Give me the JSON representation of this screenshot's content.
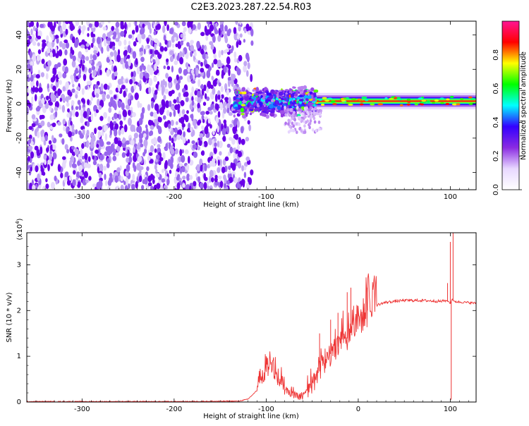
{
  "title": "C2E3.2023.287.22.54.R03",
  "chart_data": [
    {
      "type": "heatmap",
      "xlabel": "Height of straight line (km)",
      "ylabel": "Frequency (Hz)",
      "xlim": [
        -360,
        128
      ],
      "ylim": [
        -50,
        48
      ],
      "xticks": [
        -300,
        -200,
        -100,
        0,
        100
      ],
      "yticks": [
        -40,
        -20,
        0,
        20,
        40
      ],
      "colorbar": {
        "label": "Normalized spectral amplitude",
        "range": [
          0,
          1
        ],
        "ticks": [
          "0.0",
          "0.2",
          "0.4",
          "0.6",
          "0.8"
        ],
        "colors": [
          "#ffffff",
          "#e8d8ff",
          "#8a2be2",
          "#3300ff",
          "#00ffff",
          "#00ff00",
          "#ffff00",
          "#ff0000",
          "#ff1493"
        ]
      },
      "regions": [
        {
          "x_range": [
            -360,
            -120
          ],
          "f_range": [
            -50,
            48
          ],
          "amplitude": 0.05,
          "pattern": "noise"
        },
        {
          "x_range": [
            -135,
            -45
          ],
          "f_range": [
            -8,
            10
          ],
          "amplitude": 0.35,
          "pattern": "turbulent band"
        },
        {
          "x_range": [
            -45,
            128
          ],
          "f_center": 1.5,
          "f_halfwidth": 2,
          "amplitude": 0.9,
          "pattern": "narrow tone"
        }
      ]
    },
    {
      "type": "line",
      "xlabel": "Height of straight line (km)",
      "ylabel": "SNR (10 * v/v)",
      "scale_note": "(x10",
      "scale_exp": "4",
      "scale_close": ")",
      "xlim": [
        -360,
        128
      ],
      "ylim": [
        0,
        3.7
      ],
      "xticks": [
        -300,
        -200,
        -100,
        0,
        100
      ],
      "yticks": [
        0,
        1,
        2,
        3
      ],
      "color": "#ee3333",
      "series": [
        {
          "x": [
            -360,
            -200,
            -130,
            -120,
            -110,
            -100,
            -95,
            -90,
            -85,
            -80,
            -75,
            -70,
            -65,
            -60,
            -55,
            -50,
            -45,
            -40,
            -35,
            -30,
            -25,
            -20,
            -15,
            -10,
            -5,
            0,
            5,
            10,
            15,
            20,
            25,
            30,
            40,
            50,
            60,
            70,
            80,
            90,
            95,
            98,
            100,
            102,
            104,
            108,
            115,
            128
          ],
          "y": [
            0.01,
            0.01,
            0.02,
            0.06,
            0.25,
            0.7,
            0.8,
            0.6,
            0.45,
            0.3,
            0.2,
            0.15,
            0.12,
            0.13,
            0.2,
            0.35,
            0.55,
            0.75,
            0.9,
            1.05,
            1.15,
            1.25,
            1.3,
            1.45,
            1.6,
            1.75,
            1.9,
            2.0,
            2.07,
            2.12,
            2.15,
            2.18,
            2.2,
            2.22,
            2.22,
            2.22,
            2.21,
            2.2,
            2.22,
            2.2,
            2.15,
            2.25,
            2.2,
            2.19,
            2.18,
            2.16
          ]
        }
      ],
      "spikes": [
        {
          "x": -100,
          "y": 1.0
        },
        {
          "x": -42,
          "y": 1.5
        },
        {
          "x": -30,
          "y": 1.8
        },
        {
          "x": -22,
          "y": 1.95
        },
        {
          "x": -12,
          "y": 2.4
        },
        {
          "x": -8,
          "y": 2.5
        },
        {
          "x": 10,
          "y": 2.5
        },
        {
          "x": 97,
          "y": 2.6
        },
        {
          "x": 100,
          "y": 3.5
        },
        {
          "x": 101,
          "y": 0.05
        },
        {
          "x": 103,
          "y": 3.7
        }
      ]
    }
  ]
}
